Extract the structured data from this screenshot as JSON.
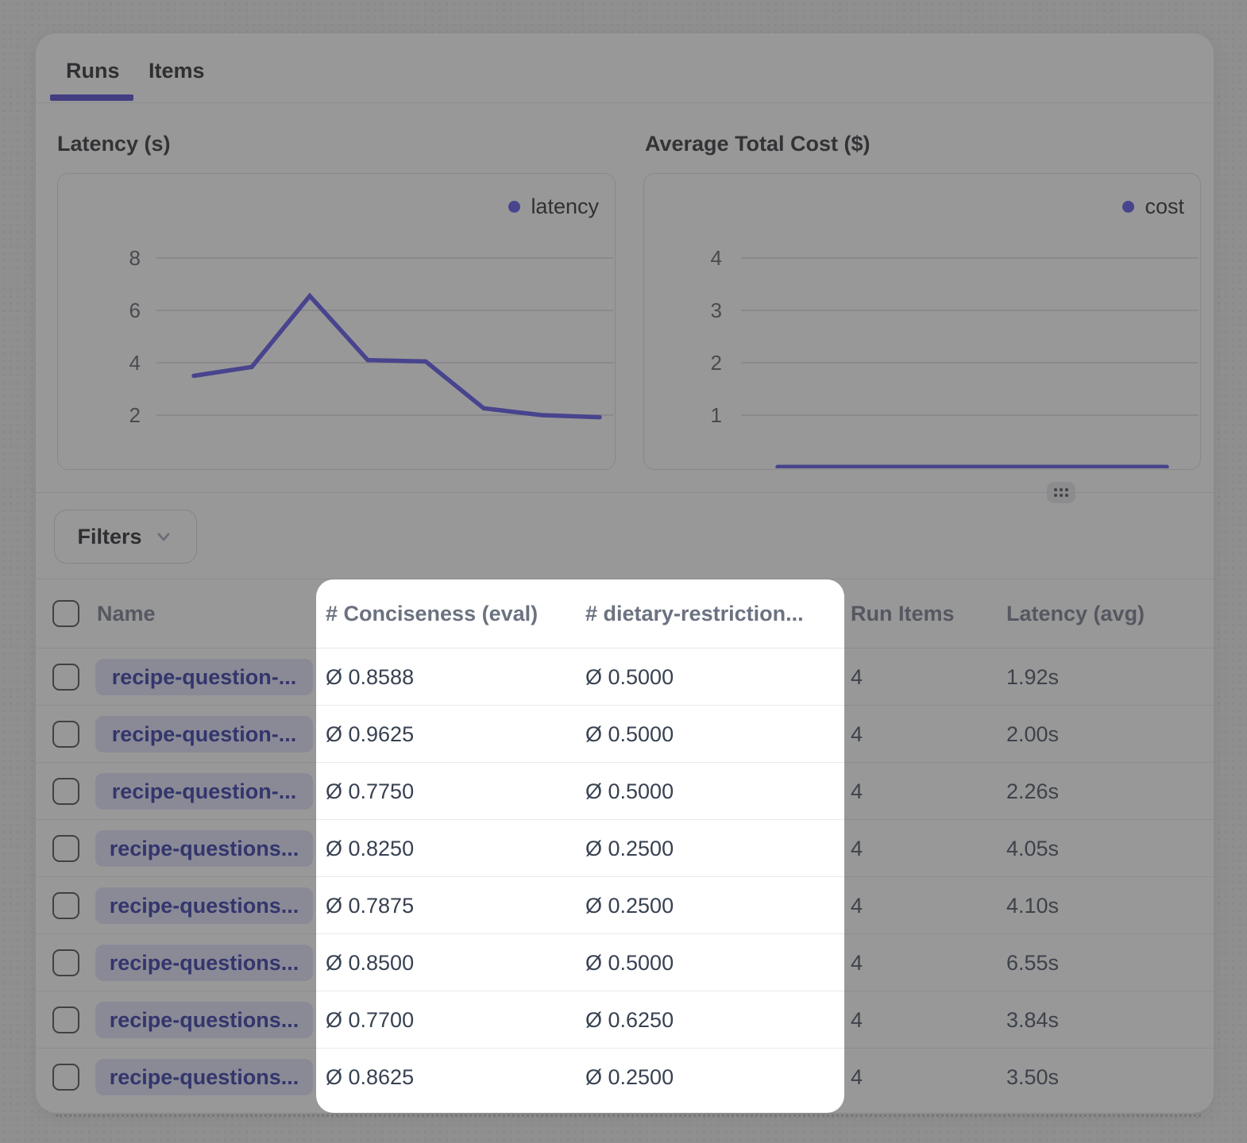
{
  "tabs": {
    "runs": "Runs",
    "items": "Items"
  },
  "chart_data": [
    {
      "type": "line",
      "title": "Latency (s)",
      "x": [
        1,
        2,
        3,
        4,
        5,
        6,
        7,
        8
      ],
      "series": [
        {
          "name": "latency",
          "values": [
            3.5,
            3.84,
            6.55,
            4.1,
            4.05,
            2.26,
            2.0,
            1.92
          ]
        }
      ],
      "yticks": [
        2,
        4,
        6,
        8
      ],
      "ylim": [
        0,
        10
      ],
      "grid": true,
      "legend_position": "top-right",
      "line_color": "#4f46e5"
    },
    {
      "type": "line",
      "title": "Average Total Cost ($)",
      "x": [
        1,
        2,
        3,
        4,
        5,
        6,
        7,
        8
      ],
      "series": [
        {
          "name": "cost",
          "values": [
            0.01,
            0.01,
            0.01,
            0.01,
            0.01,
            0.01,
            0.01,
            0.01
          ]
        }
      ],
      "yticks": [
        1,
        2,
        3,
        4
      ],
      "ylim": [
        0,
        5
      ],
      "grid": true,
      "legend_position": "top-right",
      "line_color": "#4f46e5"
    }
  ],
  "filters": {
    "label": "Filters"
  },
  "table": {
    "headers": {
      "name": "Name",
      "conciseness": "# Conciseness (eval)",
      "dietary": "# dietary-restriction...",
      "run_items": "Run Items",
      "latency_avg": "Latency (avg)"
    },
    "rows": [
      {
        "name": "recipe-question-...",
        "conciseness": "Ø 0.8588",
        "dietary": "Ø 0.5000",
        "run_items": "4",
        "latency": "1.92s"
      },
      {
        "name": "recipe-question-...",
        "conciseness": "Ø 0.9625",
        "dietary": "Ø 0.5000",
        "run_items": "4",
        "latency": "2.00s"
      },
      {
        "name": "recipe-question-...",
        "conciseness": "Ø 0.7750",
        "dietary": "Ø 0.5000",
        "run_items": "4",
        "latency": "2.26s"
      },
      {
        "name": "recipe-questions...",
        "conciseness": "Ø 0.8250",
        "dietary": "Ø 0.2500",
        "run_items": "4",
        "latency": "4.05s"
      },
      {
        "name": "recipe-questions...",
        "conciseness": "Ø 0.7875",
        "dietary": "Ø 0.2500",
        "run_items": "4",
        "latency": "4.10s"
      },
      {
        "name": "recipe-questions...",
        "conciseness": "Ø 0.8500",
        "dietary": "Ø 0.5000",
        "run_items": "4",
        "latency": "6.55s"
      },
      {
        "name": "recipe-questions...",
        "conciseness": "Ø 0.7700",
        "dietary": "Ø 0.6250",
        "run_items": "4",
        "latency": "3.84s"
      },
      {
        "name": "recipe-questions...",
        "conciseness": "Ø 0.8625",
        "dietary": "Ø 0.2500",
        "run_items": "4",
        "latency": "3.50s"
      }
    ]
  },
  "colors": {
    "accent": "#4f46e5",
    "tab_underline": "#4338ca",
    "badge_bg": "#e0e0fa",
    "badge_text": "#20259c",
    "overlay": "rgba(68,68,70,0.55)"
  }
}
